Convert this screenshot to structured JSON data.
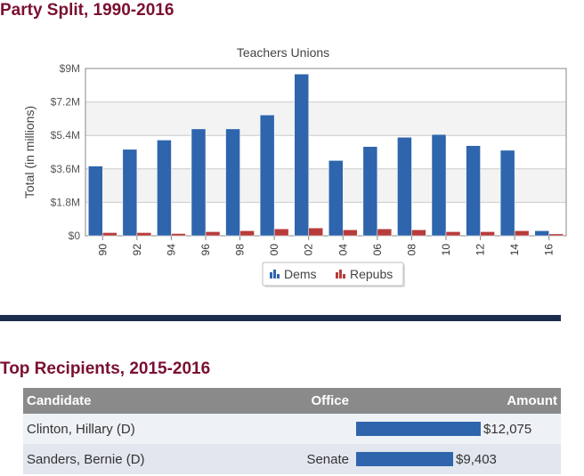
{
  "sections": {
    "party_split_title": "Party Split, 1990-2016",
    "top_recipients_title": "Top Recipients, 2015-2016"
  },
  "chart_data": {
    "type": "bar",
    "title": "Teachers Unions",
    "ylabel": "Total (in millions)",
    "xlabel": "",
    "categories": [
      "90",
      "92",
      "94",
      "96",
      "98",
      "00",
      "02",
      "04",
      "06",
      "08",
      "10",
      "12",
      "14",
      "16"
    ],
    "series": [
      {
        "name": "Dems",
        "color": "#2e65ad",
        "values": [
          3.75,
          4.65,
          5.15,
          5.75,
          5.75,
          6.5,
          8.7,
          4.05,
          4.8,
          5.3,
          5.45,
          4.85,
          4.6,
          0.27
        ]
      },
      {
        "name": "Repubs",
        "color": "#b83b3b",
        "values": [
          0.17,
          0.17,
          0.12,
          0.22,
          0.27,
          0.37,
          0.42,
          0.32,
          0.37,
          0.32,
          0.22,
          0.22,
          0.27,
          0.1
        ]
      }
    ],
    "ylim": [
      0,
      9
    ],
    "yticks": [
      0,
      1.8,
      3.6,
      5.4,
      7.2,
      9
    ],
    "ytick_labels": [
      "$0",
      "$1.8M",
      "$3.6M",
      "$5.4M",
      "$7.2M",
      "$9M"
    ],
    "grid": true,
    "legend": "bottom-center"
  },
  "table": {
    "columns": [
      "Candidate",
      "Office",
      "Amount"
    ],
    "rows": [
      {
        "candidate": "Clinton, Hillary (D)",
        "office": "",
        "amount": "$12,075",
        "value": 12075
      },
      {
        "candidate": "Sanders, Bernie (D)",
        "office": "Senate",
        "amount": "$9,403",
        "value": 9403
      }
    ],
    "bar_color": "#2e65ad"
  }
}
